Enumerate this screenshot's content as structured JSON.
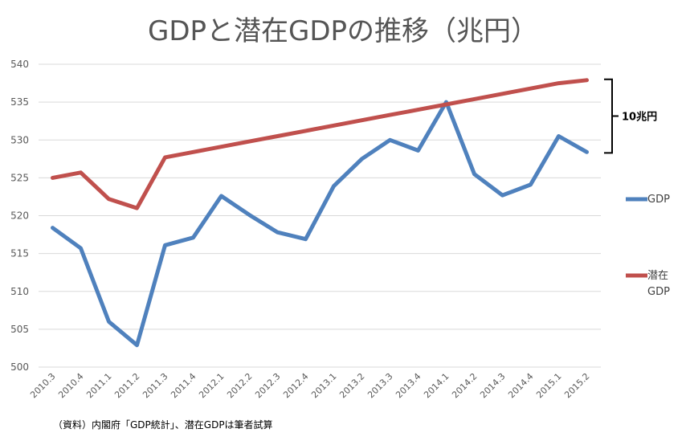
{
  "chart_data": {
    "type": "line",
    "title": "GDPと潜在GDPの推移（兆円）",
    "categories": [
      "2010.3",
      "2010.4",
      "2011.1",
      "2011.2",
      "2011.3",
      "2011.4",
      "2012.1",
      "2012.2",
      "2012.3",
      "2012.4",
      "2013.1",
      "2013.2",
      "2013.3",
      "2013.4",
      "2014.1",
      "2014.2",
      "2014.3",
      "2014.4",
      "2015.1",
      "2015.2"
    ],
    "series": [
      {
        "name": "GDP",
        "color": "#4f81bd",
        "values": [
          518.4,
          515.7,
          506.0,
          502.9,
          516.1,
          517.1,
          522.6,
          520.1,
          517.8,
          516.9,
          523.9,
          527.5,
          530.0,
          528.6,
          535.0,
          525.5,
          522.7,
          524.1,
          530.5,
          528.4
        ]
      },
      {
        "name": "潜在GDP",
        "color": "#c0504d",
        "values": [
          525.0,
          525.7,
          522.2,
          521.0,
          527.7,
          528.4,
          529.1,
          529.8,
          530.5,
          531.2,
          531.9,
          532.6,
          533.3,
          534.0,
          534.7,
          535.4,
          536.1,
          536.8,
          537.5,
          537.9
        ]
      }
    ],
    "ylim": [
      500,
      540
    ],
    "yticks": [
      500,
      505,
      510,
      515,
      520,
      525,
      530,
      535,
      540
    ],
    "grid": true,
    "legend": [
      {
        "label": "GDP",
        "color": "#4f81bd"
      },
      {
        "label_lines": [
          "潜在",
          "GDP"
        ],
        "color": "#c0504d"
      }
    ],
    "legend_position": "right",
    "annotation": {
      "label": "10兆円",
      "from": 528.4,
      "to": 537.9
    },
    "source": "（資料）内閣府「GDP統計」、潜在GDPは筆者試算"
  }
}
